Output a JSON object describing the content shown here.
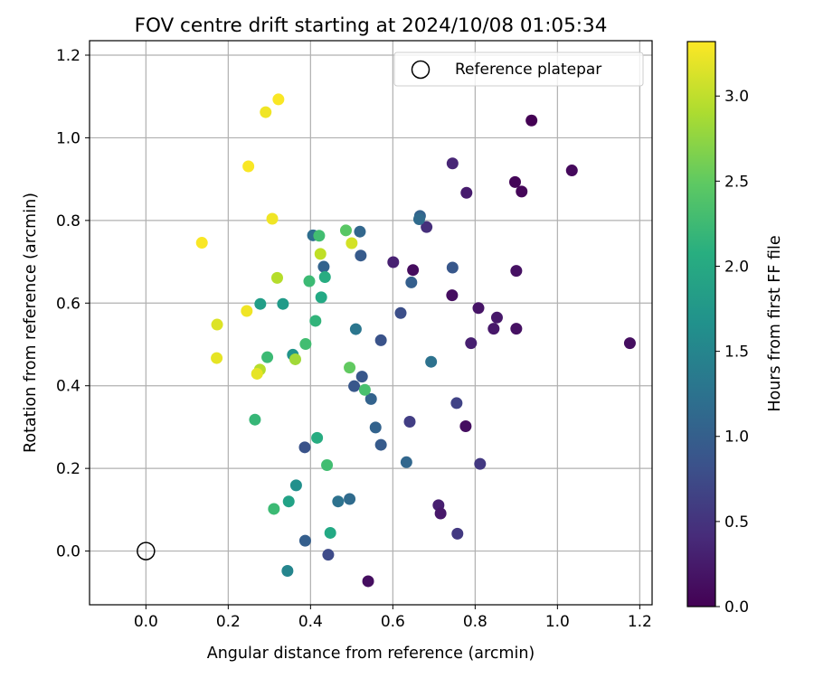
{
  "chart_data": {
    "type": "scatter",
    "title": "FOV centre drift starting at 2024/10/08 01:05:34",
    "xlabel": "Angular distance from reference (arcmin)",
    "ylabel": "Rotation from reference (arcmin)",
    "xlim": [
      -0.137,
      1.23
    ],
    "ylim": [
      -0.13,
      1.235
    ],
    "xticks": [
      0.0,
      0.2,
      0.4,
      0.6,
      0.8,
      1.0,
      1.2
    ],
    "xtick_labels": [
      "0.0",
      "0.2",
      "0.4",
      "0.6",
      "0.8",
      "1.0",
      "1.2"
    ],
    "yticks": [
      0.0,
      0.2,
      0.4,
      0.6,
      0.8,
      1.0,
      1.2
    ],
    "ytick_labels": [
      "0.0",
      "0.2",
      "0.4",
      "0.6",
      "0.8",
      "1.0",
      "1.2"
    ],
    "grid": true,
    "legend": {
      "position": "top-right",
      "entries": [
        "Reference platepar"
      ]
    },
    "colorbar": {
      "label": "Hours from first FF file",
      "colormap": "viridis",
      "range": [
        0.0,
        3.32
      ],
      "ticks": [
        0.0,
        0.5,
        1.0,
        1.5,
        2.0,
        2.5,
        3.0
      ],
      "tick_labels": [
        "0.0",
        "0.5",
        "1.0",
        "1.5",
        "2.0",
        "2.5",
        "3.0"
      ]
    },
    "reference_point": {
      "x": 0.0,
      "y": 0.0,
      "name": "Reference platepar"
    },
    "points": [
      {
        "x": 0.937,
        "y": 1.042,
        "c": 0.0
      },
      {
        "x": 1.035,
        "y": 0.921,
        "c": 0.08
      },
      {
        "x": 0.897,
        "y": 0.893,
        "c": 0.04
      },
      {
        "x": 0.913,
        "y": 0.87,
        "c": 0.05
      },
      {
        "x": 0.745,
        "y": 0.938,
        "c": 0.35
      },
      {
        "x": 0.779,
        "y": 0.867,
        "c": 0.25
      },
      {
        "x": 0.9,
        "y": 0.678,
        "c": 0.15
      },
      {
        "x": 0.9,
        "y": 0.538,
        "c": 0.15
      },
      {
        "x": 0.808,
        "y": 0.588,
        "c": 0.18
      },
      {
        "x": 0.853,
        "y": 0.565,
        "c": 0.22
      },
      {
        "x": 0.845,
        "y": 0.538,
        "c": 0.22
      },
      {
        "x": 0.79,
        "y": 0.503,
        "c": 0.28
      },
      {
        "x": 1.176,
        "y": 0.503,
        "c": 0.12
      },
      {
        "x": 0.744,
        "y": 0.619,
        "c": 0.12
      },
      {
        "x": 0.649,
        "y": 0.68,
        "c": 0.1
      },
      {
        "x": 0.601,
        "y": 0.699,
        "c": 0.3
      },
      {
        "x": 0.682,
        "y": 0.784,
        "c": 0.45
      },
      {
        "x": 0.777,
        "y": 0.302,
        "c": 0.12
      },
      {
        "x": 0.711,
        "y": 0.111,
        "c": 0.28
      },
      {
        "x": 0.716,
        "y": 0.091,
        "c": 0.22
      },
      {
        "x": 0.54,
        "y": -0.073,
        "c": 0.12
      },
      {
        "x": 0.757,
        "y": 0.042,
        "c": 0.55
      },
      {
        "x": 0.812,
        "y": 0.211,
        "c": 0.55
      },
      {
        "x": 0.755,
        "y": 0.358,
        "c": 0.65
      },
      {
        "x": 0.641,
        "y": 0.313,
        "c": 0.6
      },
      {
        "x": 0.666,
        "y": 0.811,
        "c": 1.05
      },
      {
        "x": 0.664,
        "y": 0.803,
        "c": 1.15
      },
      {
        "x": 0.745,
        "y": 0.686,
        "c": 0.9
      },
      {
        "x": 0.645,
        "y": 0.65,
        "c": 1.0
      },
      {
        "x": 0.619,
        "y": 0.576,
        "c": 0.8
      },
      {
        "x": 0.571,
        "y": 0.51,
        "c": 0.85
      },
      {
        "x": 0.693,
        "y": 0.458,
        "c": 1.25
      },
      {
        "x": 0.52,
        "y": 0.773,
        "c": 1.1
      },
      {
        "x": 0.522,
        "y": 0.715,
        "c": 0.95
      },
      {
        "x": 0.432,
        "y": 0.688,
        "c": 1.05
      },
      {
        "x": 0.406,
        "y": 0.764,
        "c": 1.2
      },
      {
        "x": 0.51,
        "y": 0.537,
        "c": 1.3
      },
      {
        "x": 0.525,
        "y": 0.422,
        "c": 0.9
      },
      {
        "x": 0.506,
        "y": 0.399,
        "c": 0.9
      },
      {
        "x": 0.547,
        "y": 0.368,
        "c": 1.05
      },
      {
        "x": 0.558,
        "y": 0.299,
        "c": 1.05
      },
      {
        "x": 0.571,
        "y": 0.257,
        "c": 0.95
      },
      {
        "x": 0.633,
        "y": 0.215,
        "c": 1.1
      },
      {
        "x": 0.386,
        "y": 0.251,
        "c": 0.85
      },
      {
        "x": 0.495,
        "y": 0.126,
        "c": 1.15
      },
      {
        "x": 0.467,
        "y": 0.12,
        "c": 1.25
      },
      {
        "x": 0.387,
        "y": 0.025,
        "c": 1.0
      },
      {
        "x": 0.443,
        "y": -0.009,
        "c": 0.75
      },
      {
        "x": 0.344,
        "y": -0.048,
        "c": 1.5
      },
      {
        "x": 0.365,
        "y": 0.159,
        "c": 1.65
      },
      {
        "x": 0.347,
        "y": 0.12,
        "c": 1.9
      },
      {
        "x": 0.311,
        "y": 0.102,
        "c": 2.25
      },
      {
        "x": 0.448,
        "y": 0.044,
        "c": 2.0
      },
      {
        "x": 0.416,
        "y": 0.274,
        "c": 2.05
      },
      {
        "x": 0.44,
        "y": 0.208,
        "c": 2.3
      },
      {
        "x": 0.265,
        "y": 0.318,
        "c": 2.2
      },
      {
        "x": 0.357,
        "y": 0.475,
        "c": 1.7
      },
      {
        "x": 0.295,
        "y": 0.469,
        "c": 2.25
      },
      {
        "x": 0.388,
        "y": 0.501,
        "c": 2.3
      },
      {
        "x": 0.412,
        "y": 0.557,
        "c": 2.15
      },
      {
        "x": 0.333,
        "y": 0.598,
        "c": 1.8
      },
      {
        "x": 0.278,
        "y": 0.598,
        "c": 1.85
      },
      {
        "x": 0.426,
        "y": 0.614,
        "c": 2.0
      },
      {
        "x": 0.435,
        "y": 0.663,
        "c": 2.05
      },
      {
        "x": 0.397,
        "y": 0.653,
        "c": 2.25
      },
      {
        "x": 0.421,
        "y": 0.763,
        "c": 2.3
      },
      {
        "x": 0.486,
        "y": 0.776,
        "c": 2.45
      },
      {
        "x": 0.495,
        "y": 0.444,
        "c": 2.5
      },
      {
        "x": 0.532,
        "y": 0.39,
        "c": 2.35
      },
      {
        "x": 0.363,
        "y": 0.464,
        "c": 2.85
      },
      {
        "x": 0.277,
        "y": 0.439,
        "c": 2.95
      },
      {
        "x": 0.27,
        "y": 0.429,
        "c": 3.2
      },
      {
        "x": 0.319,
        "y": 0.661,
        "c": 2.95
      },
      {
        "x": 0.424,
        "y": 0.719,
        "c": 3.0
      },
      {
        "x": 0.5,
        "y": 0.745,
        "c": 3.1
      },
      {
        "x": 0.307,
        "y": 0.804,
        "c": 3.25
      },
      {
        "x": 0.245,
        "y": 0.581,
        "c": 3.25
      },
      {
        "x": 0.173,
        "y": 0.548,
        "c": 3.15
      },
      {
        "x": 0.172,
        "y": 0.467,
        "c": 3.2
      },
      {
        "x": 0.136,
        "y": 0.746,
        "c": 3.3
      },
      {
        "x": 0.249,
        "y": 0.931,
        "c": 3.3
      },
      {
        "x": 0.291,
        "y": 1.062,
        "c": 3.25
      },
      {
        "x": 0.322,
        "y": 1.093,
        "c": 3.3
      }
    ]
  }
}
